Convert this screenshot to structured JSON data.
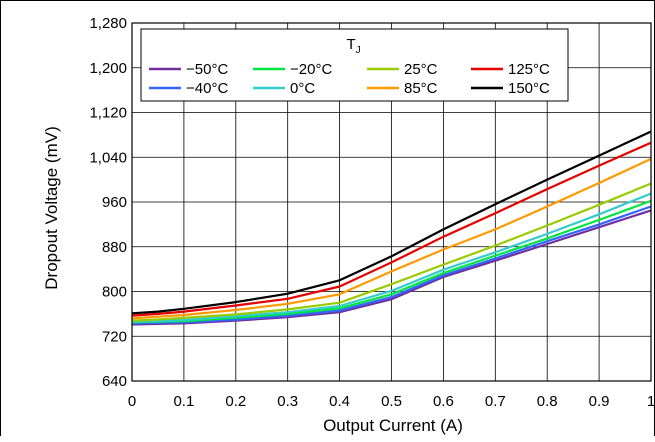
{
  "chart_data": {
    "type": "line",
    "xlabel": "Output Current (A)",
    "ylabel": "Dropout Voltage (mV)",
    "xlim": [
      0,
      1
    ],
    "ylim": [
      640,
      1280
    ],
    "x_ticks": [
      0,
      0.1,
      0.2,
      0.3,
      0.4,
      0.5,
      0.6,
      0.7,
      0.8,
      0.9,
      1
    ],
    "x_tick_labels": [
      "0",
      "0.1",
      "0.2",
      "0.3",
      "0.4",
      "0.5",
      "0.6",
      "0.7",
      "0.8",
      "0.9",
      "1"
    ],
    "y_ticks": [
      640,
      720,
      800,
      880,
      960,
      1040,
      1120,
      1200,
      1280
    ],
    "y_tick_labels": [
      "640",
      "720",
      "800",
      "880",
      "960",
      "1,040",
      "1,120",
      "1,200",
      "1,280"
    ],
    "grid": true,
    "legend": {
      "title": "T",
      "title_subscript": "J",
      "placement": "top-right",
      "columns": 4
    },
    "x": [
      0,
      0.05,
      0.1,
      0.2,
      0.3,
      0.4,
      0.5,
      0.6,
      0.7,
      0.8,
      0.9,
      1
    ],
    "series": [
      {
        "name": "−50°C",
        "color": "#7030a0",
        "values": [
          741,
          742,
          743,
          748,
          754,
          763,
          786,
          826,
          855,
          885,
          915,
          945
        ]
      },
      {
        "name": "−40°C",
        "color": "#3366ff",
        "values": [
          743,
          744,
          745,
          750,
          757,
          766,
          790,
          829,
          859,
          890,
          920,
          952
        ]
      },
      {
        "name": "−20°C",
        "color": "#00e640",
        "values": [
          745,
          746,
          747,
          753,
          760,
          770,
          795,
          833,
          864,
          895,
          928,
          962
        ]
      },
      {
        "name": "0°C",
        "color": "#33cccc",
        "values": [
          746,
          747,
          749,
          756,
          763,
          774,
          801,
          839,
          870,
          903,
          938,
          975
        ]
      },
      {
        "name": "25°C",
        "color": "#99cc00",
        "values": [
          748,
          750,
          753,
          759,
          768,
          780,
          813,
          848,
          882,
          918,
          955,
          993
        ]
      },
      {
        "name": "85°C",
        "color": "#ff9900",
        "values": [
          752,
          755,
          758,
          767,
          778,
          795,
          836,
          875,
          911,
          952,
          994,
          1037
        ]
      },
      {
        "name": "125°C",
        "color": "#e60000",
        "values": [
          757,
          760,
          764,
          775,
          787,
          809,
          852,
          898,
          940,
          983,
          1025,
          1066
        ]
      },
      {
        "name": "150°C",
        "color": "#000000",
        "values": [
          761,
          764,
          769,
          781,
          796,
          820,
          863,
          911,
          956,
          1000,
          1043,
          1086
        ]
      }
    ]
  }
}
